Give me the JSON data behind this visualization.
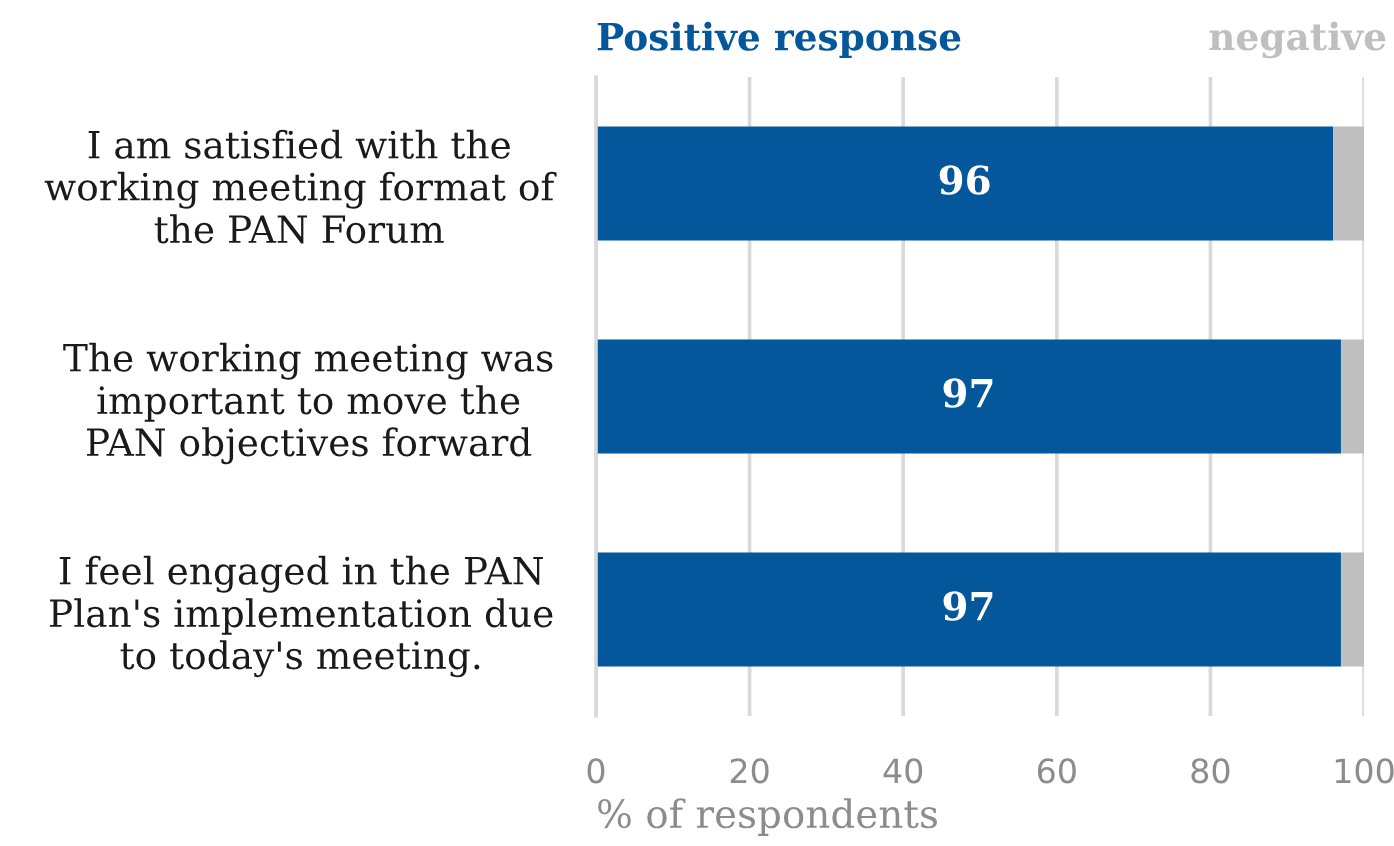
{
  "chart_data": {
    "type": "bar",
    "orientation": "horizontal",
    "stacked": true,
    "categories": [
      "I am satisfied with the\nworking meeting format of\nthe PAN Forum",
      "The working meeting was\nimportant to move the\nPAN objectives forward",
      "I feel engaged in the PAN\nPlan's implementation due\nto today's meeting."
    ],
    "series": [
      {
        "name": "Positive response",
        "color": "#03579a",
        "values": [
          96,
          97,
          97
        ],
        "value_labels": [
          "96",
          "97",
          "97"
        ]
      },
      {
        "name": "negative",
        "color": "#bfbfbf",
        "values": [
          4,
          3,
          3
        ]
      }
    ],
    "xlabel": "% of respondents",
    "xlim": [
      0,
      100
    ],
    "xticks": [
      0,
      20,
      40,
      60,
      80,
      100
    ],
    "grid": "x",
    "legend": "top"
  }
}
